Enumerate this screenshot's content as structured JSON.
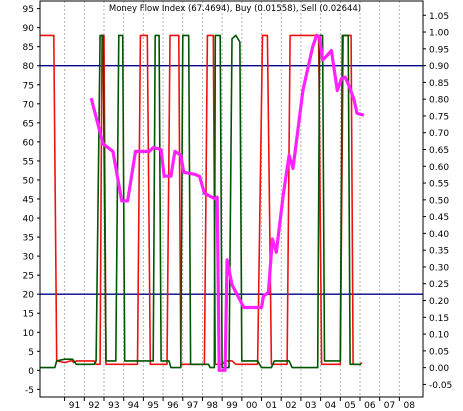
{
  "chart_data": {
    "type": "line",
    "title": "Money Flow Index (67.4694), Buy (0.01558), Sell (0.02644)",
    "left_axis": {
      "range": [
        -7,
        97
      ],
      "ticks": [
        "95",
        "90",
        "85",
        "80",
        "75",
        "70",
        "65",
        "60",
        "55",
        "50",
        "45",
        "40",
        "35",
        "30",
        "25",
        "20",
        "15",
        "10",
        "5",
        "0",
        "-5"
      ]
    },
    "right_axis": {
      "range": [
        -0.0875,
        1.0925
      ],
      "ticks": [
        "1.05",
        "1.00",
        "0.95",
        "0.90",
        "0.85",
        "0.80",
        "0.75",
        "0.70",
        "0.65",
        "0.60",
        "0.55",
        "0.50",
        "0.45",
        "0.40",
        "0.35",
        "0.30",
        "0.25",
        "0.20",
        "0.15",
        "0.10",
        "0.05",
        "0.00",
        "-0.05"
      ]
    },
    "x_axis": {
      "range": [
        1989.75,
        2009.2
      ],
      "ticks": [
        "91",
        "92",
        "93",
        "94",
        "95",
        "96",
        "97",
        "98",
        "99",
        "00",
        "01",
        "02",
        "03",
        "04",
        "05",
        "06",
        "07",
        "08"
      ]
    },
    "reference_lines": [
      {
        "value": 80,
        "axis": "left",
        "color": "#00008b"
      },
      {
        "value": 20,
        "axis": "left",
        "color": "#00008b"
      }
    ],
    "grid": "vertical dotted",
    "series": [
      {
        "axis": "right",
        "color": "#ee1111",
        "points": [
          [
            1989.75,
            0.99
          ],
          [
            1990.45,
            0.99
          ],
          [
            1990.6,
            0.02
          ],
          [
            1991.0,
            0.015
          ],
          [
            1991.3,
            0.02
          ],
          [
            1991.4,
            0.02
          ],
          [
            1991.45,
            0.015
          ],
          [
            1991.6,
            0.02
          ],
          [
            1992.0,
            0.02
          ],
          [
            1992.5,
            0.02
          ],
          [
            1992.6,
            0.01
          ],
          [
            1992.8,
            0.01
          ],
          [
            1992.9,
            0.99
          ],
          [
            1993.0,
            0.99
          ],
          [
            1993.1,
            0.01
          ],
          [
            1994.7,
            0.01
          ],
          [
            1994.85,
            0.99
          ],
          [
            1995.2,
            0.99
          ],
          [
            1995.35,
            0.01
          ],
          [
            1996.2,
            0.01
          ],
          [
            1996.35,
            0.99
          ],
          [
            1996.8,
            0.99
          ],
          [
            1996.9,
            0.01
          ],
          [
            1998.1,
            0.01
          ],
          [
            1998.25,
            0.99
          ],
          [
            1998.55,
            0.99
          ],
          [
            1998.65,
            0.01
          ],
          [
            1999.0,
            0.01
          ],
          [
            1999.15,
            0.02
          ],
          [
            1999.5,
            0.02
          ],
          [
            1999.7,
            0.01
          ],
          [
            2000.8,
            0.01
          ],
          [
            2001.05,
            0.99
          ],
          [
            2001.3,
            0.99
          ],
          [
            2001.5,
            0.01
          ],
          [
            2002.3,
            0.01
          ],
          [
            2002.45,
            0.99
          ],
          [
            2003.9,
            0.99
          ],
          [
            2004.05,
            0.01
          ],
          [
            2005.0,
            0.01
          ],
          [
            2005.15,
            0.99
          ],
          [
            2005.55,
            0.99
          ],
          [
            2005.65,
            0.01
          ],
          [
            2006.0,
            0.01
          ],
          [
            2006.1,
            0.015
          ]
        ]
      },
      {
        "axis": "right",
        "color": "#005500",
        "points": [
          [
            1989.75,
            0.0
          ],
          [
            1990.5,
            0.0
          ],
          [
            1990.6,
            0.02
          ],
          [
            1991.0,
            0.025
          ],
          [
            1991.4,
            0.025
          ],
          [
            1991.6,
            0.01
          ],
          [
            1992.5,
            0.01
          ],
          [
            1992.6,
            0.02
          ],
          [
            1992.8,
            0.99
          ],
          [
            1992.95,
            0.99
          ],
          [
            1993.1,
            0.02
          ],
          [
            1993.6,
            0.02
          ],
          [
            1993.75,
            0.99
          ],
          [
            1993.95,
            0.99
          ],
          [
            1994.05,
            0.02
          ],
          [
            1995.5,
            0.02
          ],
          [
            1995.6,
            0.99
          ],
          [
            1995.8,
            0.99
          ],
          [
            1995.9,
            0.02
          ],
          [
            1996.3,
            0.02
          ],
          [
            1996.4,
            0.0
          ],
          [
            1996.9,
            0.0
          ],
          [
            1997.0,
            0.99
          ],
          [
            1997.3,
            0.99
          ],
          [
            1997.4,
            0.01
          ],
          [
            1998.3,
            0.01
          ],
          [
            1998.4,
            0.0
          ],
          [
            1998.6,
            0.0
          ],
          [
            1998.65,
            0.99
          ],
          [
            1998.9,
            0.99
          ],
          [
            1999.0,
            0.0
          ],
          [
            1999.35,
            0.0
          ],
          [
            1999.5,
            0.98
          ],
          [
            1999.7,
            0.99
          ],
          [
            1999.9,
            0.97
          ],
          [
            2000.0,
            0.02
          ],
          [
            2000.8,
            0.02
          ],
          [
            2001.0,
            0.0
          ],
          [
            2001.5,
            0.0
          ],
          [
            2001.65,
            0.02
          ],
          [
            2002.4,
            0.02
          ],
          [
            2002.55,
            0.0
          ],
          [
            2003.85,
            0.0
          ],
          [
            2003.95,
            0.99
          ],
          [
            2004.1,
            0.99
          ],
          [
            2004.2,
            0.02
          ],
          [
            2005.0,
            0.02
          ],
          [
            2005.1,
            0.99
          ],
          [
            2005.4,
            0.99
          ],
          [
            2005.5,
            0.01
          ],
          [
            2006.05,
            0.01
          ]
        ]
      },
      {
        "axis": "left",
        "color": "#ff22ff",
        "points": [
          [
            1992.35,
            71.5
          ],
          [
            1992.95,
            59.5
          ],
          [
            1993.45,
            57.5
          ],
          [
            1993.9,
            44.5
          ],
          [
            1994.2,
            44.5
          ],
          [
            1994.6,
            57.5
          ],
          [
            1995.05,
            57.5
          ],
          [
            1995.3,
            57.5
          ],
          [
            1995.5,
            58.5
          ],
          [
            1995.9,
            58.0
          ],
          [
            1996.05,
            51.0
          ],
          [
            1996.4,
            51.0
          ],
          [
            1996.6,
            57.5
          ],
          [
            1996.9,
            56.5
          ],
          [
            1997.05,
            52.0
          ],
          [
            1997.6,
            51.5
          ],
          [
            1997.85,
            51.0
          ],
          [
            1998.1,
            46.5
          ],
          [
            1998.65,
            45.0
          ],
          [
            1998.75,
            45.5
          ],
          [
            1998.85,
            0.0
          ],
          [
            1999.15,
            0.0
          ],
          [
            1999.25,
            29.0
          ],
          [
            1999.5,
            22.5
          ],
          [
            1999.75,
            20.0
          ],
          [
            2000.1,
            16.5
          ],
          [
            2000.4,
            16.5
          ],
          [
            2000.8,
            16.5
          ],
          [
            2001.0,
            16.5
          ],
          [
            2001.1,
            19.5
          ],
          [
            2001.35,
            20.5
          ],
          [
            2001.55,
            34.5
          ],
          [
            2001.75,
            31.0
          ],
          [
            2002.1,
            46.0
          ],
          [
            2002.4,
            56.5
          ],
          [
            2002.6,
            53.0
          ],
          [
            2003.1,
            73.5
          ],
          [
            2003.6,
            85.0
          ],
          [
            2003.8,
            88.0
          ],
          [
            2003.95,
            87.5
          ],
          [
            2004.1,
            81.5
          ],
          [
            2004.3,
            82.5
          ],
          [
            2004.55,
            84.0
          ],
          [
            2004.85,
            73.5
          ],
          [
            2005.05,
            76.5
          ],
          [
            2005.25,
            77.0
          ],
          [
            2005.5,
            74.0
          ],
          [
            2005.7,
            71.0
          ],
          [
            2005.85,
            67.5
          ],
          [
            2006.2,
            67.0
          ]
        ]
      }
    ]
  }
}
